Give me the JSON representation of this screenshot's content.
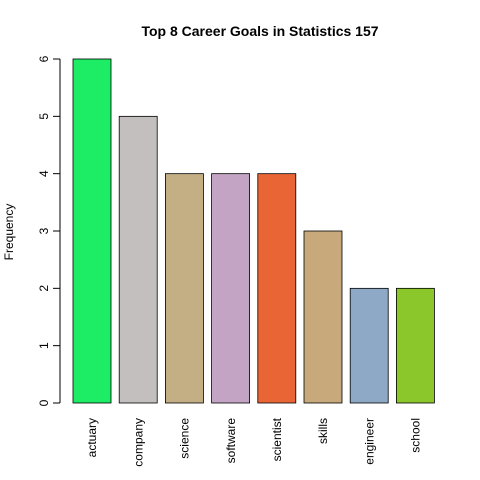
{
  "chart_data": {
    "type": "bar",
    "title": "Top 8 Career Goals in Statistics 157",
    "xlabel": "",
    "ylabel": "Frequency",
    "categories": [
      "actuary",
      "company",
      "science",
      "software",
      "scientist",
      "skills",
      "engineer",
      "school"
    ],
    "values": [
      6,
      5,
      4,
      4,
      4,
      3,
      2,
      2
    ],
    "colors": [
      "#1ded65",
      "#c3bfbe",
      "#c4ae84",
      "#c3a4c4",
      "#e96535",
      "#c8a97b",
      "#8ea9c6",
      "#8bc62b"
    ],
    "yticks": [
      0,
      1,
      2,
      3,
      4,
      5,
      6
    ],
    "ylim": [
      0,
      6
    ],
    "grid": false,
    "legend": "none"
  }
}
